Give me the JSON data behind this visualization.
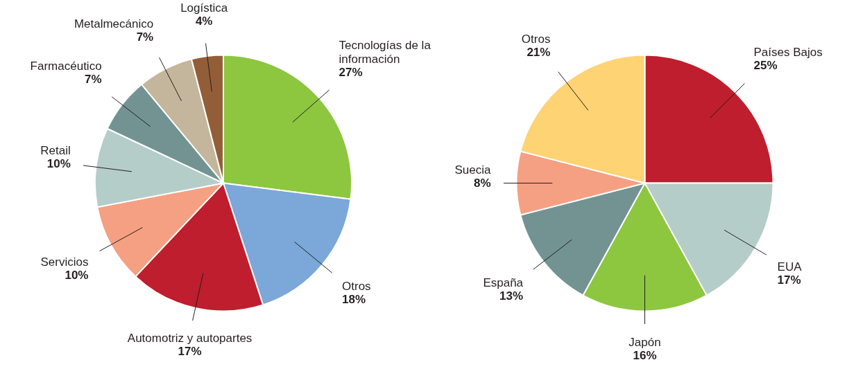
{
  "chart_data": [
    {
      "type": "pie",
      "categories": [
        "Tecnologías de la\ninformación",
        "Otros",
        "Automotriz y autopartes",
        "Servicios",
        "Retail",
        "Farmacéutico",
        "Metalmecánico",
        "Logística"
      ],
      "values": [
        27,
        18,
        17,
        10,
        10,
        7,
        7,
        4
      ],
      "value_labels": [
        "27%",
        "18%",
        "17%",
        "10%",
        "10%",
        "7%",
        "7%",
        "4%"
      ],
      "colors": [
        "#8dc63f",
        "#7ba7d9",
        "#be1e2d",
        "#f5a082",
        "#b5cdc9",
        "#739393",
        "#c4b59d",
        "#935e37"
      ]
    },
    {
      "type": "pie",
      "categories": [
        "Países Bajos",
        "EUA",
        "Japón",
        "España",
        "Suecia",
        "Otros"
      ],
      "values": [
        25,
        17,
        16,
        13,
        8,
        21
      ],
      "value_labels": [
        "25%",
        "17%",
        "16%",
        "13%",
        "8%",
        "21%"
      ],
      "colors": [
        "#be1e2d",
        "#b5cdc9",
        "#8dc63f",
        "#739393",
        "#f5a082",
        "#fed374"
      ]
    }
  ]
}
